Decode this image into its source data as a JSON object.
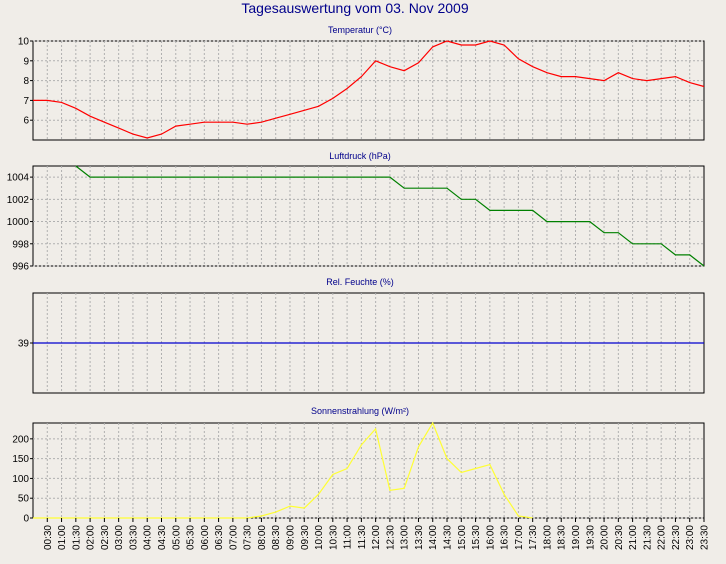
{
  "page": {
    "title": "Tagesauswertung vom 03. Nov 2009"
  },
  "colors": {
    "background": "#f0ede8",
    "plot_bg": "#f0ede8",
    "grid": "#b0b0b0",
    "title_text": "#00008b"
  },
  "chart_data": [
    {
      "type": "line",
      "title": "Temperatur (°C)",
      "color": "#ff0000",
      "ylim": [
        5,
        10
      ],
      "yticks": [
        6,
        7,
        8,
        9,
        10
      ],
      "x_hours": [
        0,
        0.5,
        1,
        1.5,
        2,
        2.5,
        3,
        3.5,
        4,
        4.5,
        5,
        5.5,
        6,
        6.5,
        7,
        7.5,
        8,
        8.5,
        9,
        9.5,
        10,
        10.5,
        11,
        11.5,
        12,
        12.5,
        13,
        13.5,
        14,
        14.5,
        15,
        15.5,
        16,
        16.5,
        17,
        17.5,
        18,
        18.5,
        19,
        19.5,
        20,
        20.5,
        21,
        21.5,
        22,
        22.5,
        23,
        23.5
      ],
      "values": [
        7.0,
        7.0,
        6.9,
        6.6,
        6.2,
        5.9,
        5.6,
        5.3,
        5.1,
        5.3,
        5.7,
        5.8,
        5.9,
        5.9,
        5.9,
        5.8,
        5.9,
        6.1,
        6.3,
        6.5,
        6.7,
        7.1,
        7.6,
        8.2,
        9.0,
        8.7,
        8.5,
        8.9,
        9.7,
        10.0,
        9.8,
        9.8,
        10.0,
        9.8,
        9.1,
        8.7,
        8.4,
        8.2,
        8.2,
        8.1,
        8.0,
        8.4,
        8.1,
        8.0,
        8.1,
        8.2,
        7.9,
        7.7
      ]
    },
    {
      "type": "line",
      "title": "Luftdruck (hPa)",
      "color": "#008000",
      "ylim": [
        996,
        1005
      ],
      "yticks": [
        996,
        998,
        1000,
        1002,
        1004
      ],
      "x_hours": [
        1.5,
        2,
        2.5,
        3,
        3.5,
        4,
        4.5,
        5,
        5.5,
        6,
        6.5,
        7,
        7.5,
        8,
        8.5,
        9,
        9.5,
        10,
        10.5,
        11,
        11.5,
        12,
        12.5,
        13,
        13.5,
        14,
        14.5,
        15,
        15.5,
        16,
        16.5,
        17,
        17.5,
        18,
        18.5,
        19,
        19.5,
        20,
        20.5,
        21,
        21.5,
        22,
        22.5,
        23,
        23.5
      ],
      "values": [
        1005,
        1004,
        1004,
        1004,
        1004,
        1004,
        1004,
        1004,
        1004,
        1004,
        1004,
        1004,
        1004,
        1004,
        1004,
        1004,
        1004,
        1004,
        1004,
        1004,
        1004,
        1004,
        1004,
        1003,
        1003,
        1003,
        1003,
        1002,
        1002,
        1001,
        1001,
        1001,
        1001,
        1000,
        1000,
        1000,
        1000,
        999,
        999,
        998,
        998,
        998,
        997,
        997,
        996
      ]
    },
    {
      "type": "line",
      "title": "Rel. Feuchte (%)",
      "color": "#0000cd",
      "ylim": [
        38,
        40
      ],
      "yticks": [
        39
      ],
      "x_hours": [
        0,
        23.5
      ],
      "values": [
        39,
        39
      ]
    },
    {
      "type": "line",
      "title": "Sonnenstrahlung (W/m²)",
      "color": "#ffff33",
      "ylim": [
        0,
        240
      ],
      "yticks": [
        0,
        50,
        100,
        150,
        200
      ],
      "x_hours": [
        0,
        0.5,
        1,
        1.5,
        2,
        2.5,
        3,
        3.5,
        4,
        4.5,
        5,
        5.5,
        6,
        6.5,
        7,
        7.5,
        8,
        8.5,
        9,
        9.5,
        10,
        10.5,
        11,
        11.5,
        12,
        12.5,
        13,
        13.5,
        14,
        14.5,
        15,
        15.5,
        16,
        16.5,
        17,
        17.5
      ],
      "values": [
        0,
        0,
        0,
        0,
        0,
        0,
        0,
        0,
        0,
        0,
        0,
        0,
        0,
        0,
        0,
        0,
        5,
        15,
        30,
        25,
        60,
        110,
        125,
        185,
        225,
        70,
        75,
        180,
        240,
        150,
        115,
        125,
        135,
        60,
        5,
        0
      ]
    }
  ],
  "x_axis": {
    "labels": [
      "00:30",
      "01:00",
      "01:30",
      "02:00",
      "02:30",
      "03:00",
      "03:30",
      "04:00",
      "04:30",
      "05:00",
      "05:30",
      "06:00",
      "06:30",
      "07:00",
      "07:30",
      "08:00",
      "08:30",
      "09:00",
      "09:30",
      "10:00",
      "10:30",
      "11:00",
      "11:30",
      "12:00",
      "12:30",
      "13:00",
      "13:30",
      "14:00",
      "14:30",
      "15:00",
      "15:30",
      "16:00",
      "16:30",
      "17:00",
      "17:30",
      "18:00",
      "18:30",
      "19:00",
      "19:30",
      "20:00",
      "20:30",
      "21:00",
      "21:30",
      "22:00",
      "22:30",
      "23:00",
      "23:30"
    ]
  }
}
